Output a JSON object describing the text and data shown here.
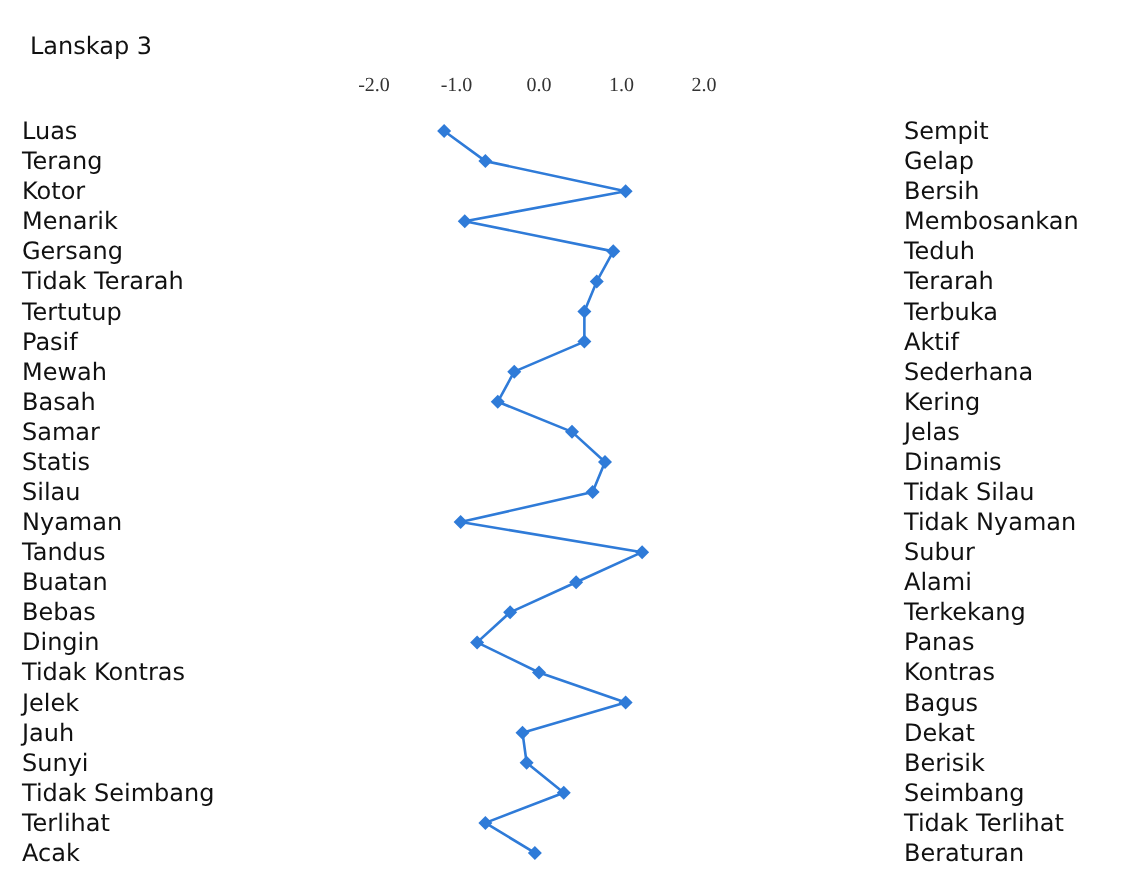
{
  "chart_data": {
    "type": "line",
    "orientation": "horizontal",
    "title": "Lanskap 3",
    "categories": [
      "Luas",
      "Terang",
      "Kotor",
      "Menarik",
      "Gersang",
      "Tidak Terarah",
      "Tertutup",
      "Pasif",
      "Mewah",
      "Basah",
      "Samar",
      "Statis",
      "Silau",
      "Nyaman",
      "Tandus",
      "Buatan",
      "Bebas",
      "Dingin",
      "Tidak Kontras",
      "Jelek",
      "Jauh",
      "Sunyi",
      "Tidak Seimbang",
      "Terlihat",
      "Acak"
    ],
    "y2_categories": [
      "Sempit",
      "Gelap",
      "Bersih",
      "Membosankan",
      "Teduh",
      "Terarah",
      "Terbuka",
      "Aktif",
      "Sederhana",
      "Kering",
      "Jelas",
      "Dinamis",
      "Tidak Silau",
      "Tidak Nyaman",
      "Subur",
      "Alami",
      "Terkekang",
      "Panas",
      "Kontras",
      "Bagus",
      "Dekat",
      "Berisik",
      "Seimbang",
      "Tidak Terlihat",
      "Beraturan"
    ],
    "series": [
      {
        "axis": "x2",
        "color": "#2f7bd8",
        "values": [
          -1.15,
          -0.65,
          1.05,
          -0.9,
          0.9,
          0.7,
          0.55,
          0.55,
          -0.3,
          -0.5,
          0.4,
          0.8,
          0.65,
          -0.95,
          1.25,
          0.45,
          -0.35,
          -0.75,
          0,
          1.05,
          -0.2,
          -0.15,
          0.3,
          -0.65,
          -0.05
        ]
      }
    ],
    "x2lim": [
      -2,
      2
    ],
    "x2ticks": [
      {
        "value": -2,
        "label": "-2.0"
      },
      {
        "value": -1,
        "label": "-1.0"
      },
      {
        "value": 0,
        "label": "0.0"
      },
      {
        "value": 1,
        "label": "1.0"
      },
      {
        "value": 2,
        "label": "2.0"
      }
    ],
    "marker": "diamond",
    "line_style": "solid",
    "grid": false
  }
}
